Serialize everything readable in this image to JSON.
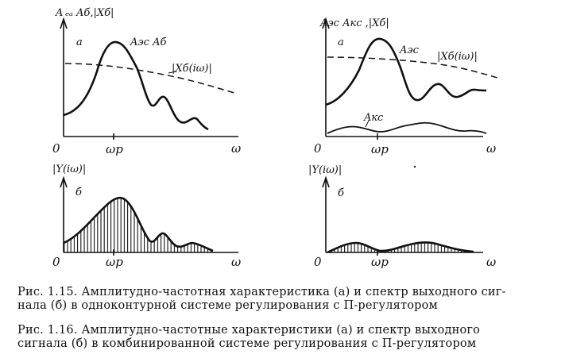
{
  "panels": {
    "p15a": {
      "y_label": "A ₑₐ Aб,|Xб|",
      "letter": "a",
      "origin": "0",
      "x_label": "ω",
      "tick": "ωр",
      "curve_label_1": "Aэс Aб",
      "curve_label_2": "|Xб(iω)|"
    },
    "p15b": {
      "y_label": "|Y(iω)|",
      "letter": "б",
      "origin": "0",
      "x_label": "ω",
      "tick": "ωр"
    },
    "p16a": {
      "y_label": "Aэс  Aкс ,|Xб|",
      "letter": "a",
      "origin": "0",
      "x_label": "ω",
      "tick": "ωр",
      "curve_label_1": "Aэс",
      "curve_label_2": "|Xб(iω)|",
      "curve_label_3": "Aкс"
    },
    "p16b": {
      "y_label": "|Y(iω)|",
      "letter": "б",
      "origin": "0",
      "x_label": "ω",
      "tick": "ωр"
    }
  },
  "captions": {
    "fig115": {
      "line1": "Рис. 1.15. Амплитудно-частотная характеристика (а) и спектр выходного сиг-",
      "line2": "нала (б) в одноконтурной системе регулирования с П-регулятором"
    },
    "fig116": {
      "line1": "Рис. 1.16. Амплитудно-частотные характеристики (а) и спектр выходного",
      "line2": "сигнала (б) в комбинированной системе регулирования с П-регулятором"
    }
  }
}
